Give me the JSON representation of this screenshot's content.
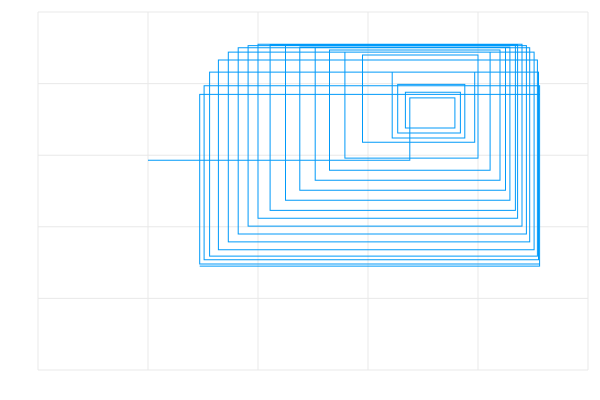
{
  "chart_data": {
    "type": "line",
    "x": [
      1.0,
      3.38,
      3.38,
      3.79,
      3.79,
      3.34,
      3.34,
      3.84,
      3.84,
      3.27,
      3.27,
      3.88,
      3.88,
      3.22,
      3.22,
      3.97,
      3.97,
      2.95,
      2.95,
      4.0,
      4.0,
      2.79,
      2.79,
      4.11,
      4.11,
      2.65,
      2.65,
      4.2,
      4.2,
      2.52,
      2.52,
      4.25,
      4.25,
      2.38,
      2.38,
      4.29,
      4.29,
      2.25,
      2.25,
      4.34,
      4.34,
      2.11,
      2.11,
      4.36,
      4.36,
      2.0,
      2.0,
      4.4,
      4.4,
      1.91,
      1.91,
      4.44,
      4.44,
      1.82,
      1.82,
      4.47,
      4.47,
      1.73,
      1.73,
      4.51,
      4.51,
      1.64,
      1.64,
      4.54,
      4.54,
      1.56,
      1.56,
      4.55,
      4.55,
      1.51,
      1.51,
      4.56,
      4.56,
      1.47,
      1.47,
      4.56,
      4.56,
      1.47
    ],
    "series": [
      {
        "color": "#009af9",
        "values": [
          2.93,
          2.93,
          3.8,
          3.8,
          3.38,
          3.38,
          3.88,
          3.88,
          3.31,
          3.31,
          3.99,
          3.99,
          3.24,
          3.24,
          4.16,
          4.16,
          3.18,
          3.18,
          4.4,
          4.4,
          2.96,
          2.96,
          4.44,
          4.44,
          2.79,
          2.79,
          4.47,
          4.47,
          2.65,
          2.65,
          4.5,
          4.5,
          2.51,
          2.51,
          4.51,
          4.51,
          2.37,
          2.37,
          4.53,
          4.53,
          2.23,
          2.23,
          4.54,
          4.54,
          2.12,
          2.12,
          4.55,
          4.55,
          2.01,
          2.01,
          4.53,
          4.53,
          1.9,
          1.9,
          4.5,
          4.5,
          1.79,
          1.79,
          4.44,
          4.44,
          1.68,
          1.68,
          4.33,
          4.33,
          1.59,
          1.59,
          4.16,
          4.16,
          1.54,
          1.54,
          3.97,
          3.97,
          1.48,
          1.48,
          3.85,
          3.85,
          1.45,
          1.45
        ]
      }
    ],
    "xlim": [
      0,
      5
    ],
    "ylim": [
      0,
      5
    ],
    "xticks": [
      0,
      1,
      2,
      3,
      4,
      5
    ],
    "yticks": [
      0,
      1,
      2,
      3,
      4,
      5
    ],
    "grid": true
  }
}
